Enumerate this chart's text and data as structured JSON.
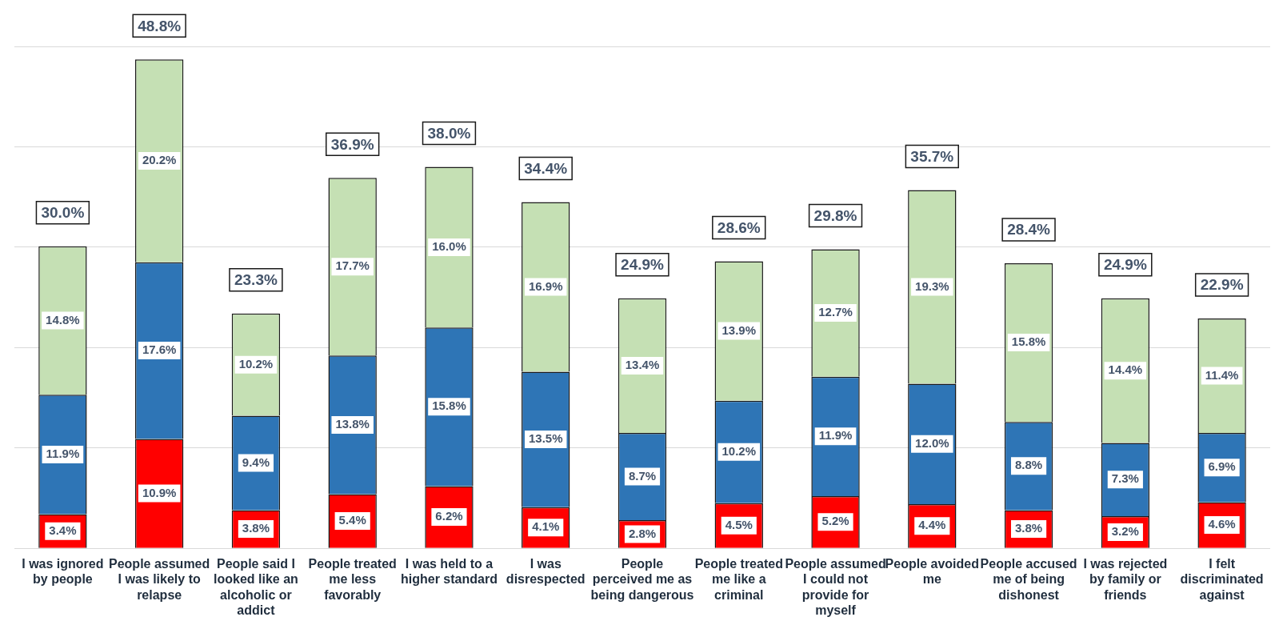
{
  "chart_data": {
    "type": "bar",
    "stacked": true,
    "categories": [
      "I was ignored by people",
      "People assumed I was likely to relapse",
      "People said I looked like an alcoholic or addict",
      "People treated me less favorably",
      "I was held to a higher standard",
      "I was disrespected",
      "People perceived me as being dangerous",
      "People treated me like a criminal",
      "People assumed I could not provide for myself",
      "People avoided me",
      "People accused me of being dishonest",
      "I was rejected by family or friends",
      "I felt discriminated against"
    ],
    "series": [
      {
        "color": "#ff0000",
        "values": [
          3.4,
          10.9,
          3.8,
          5.4,
          6.2,
          4.1,
          2.8,
          4.5,
          5.2,
          4.4,
          3.8,
          3.2,
          4.6
        ],
        "value_labels": [
          "3.4%",
          "10.9%",
          "3.8%",
          "5.4%",
          "6.2%",
          "4.1%",
          "2.8%",
          "4.5%",
          "5.2%",
          "4.4%",
          "3.8%",
          "3.2%",
          "4.6%"
        ]
      },
      {
        "color": "#2e75b6",
        "values": [
          11.9,
          17.6,
          9.4,
          13.8,
          15.8,
          13.5,
          8.7,
          10.2,
          11.9,
          12.0,
          8.8,
          7.3,
          6.9
        ],
        "value_labels": [
          "11.9%",
          "17.6%",
          "9.4%",
          "13.8%",
          "15.8%",
          "13.5%",
          "8.7%",
          "10.2%",
          "11.9%",
          "12.0%",
          "8.8%",
          "7.3%",
          "6.9%"
        ]
      },
      {
        "color": "#c5e0b4",
        "values": [
          14.8,
          20.2,
          10.2,
          17.7,
          16.0,
          16.9,
          13.4,
          13.9,
          12.7,
          19.3,
          15.8,
          14.4,
          11.4
        ],
        "value_labels": [
          "14.8%",
          "20.2%",
          "10.2%",
          "17.7%",
          "16.0%",
          "16.9%",
          "13.4%",
          "13.9%",
          "12.7%",
          "19.3%",
          "15.8%",
          "14.4%",
          "11.4%"
        ]
      }
    ],
    "totals": [
      "30.0%",
      "48.8%",
      "23.3%",
      "36.9%",
      "38.0%",
      "34.4%",
      "24.9%",
      "28.6%",
      "29.8%",
      "35.7%",
      "28.4%",
      "24.9%",
      "22.9%"
    ],
    "ylim": [
      0,
      50
    ],
    "yticks": [
      {
        "value": 0,
        "label": null
      },
      {
        "value": 10,
        "label": null
      },
      {
        "value": 20,
        "label": null
      },
      {
        "value": 30,
        "label": null
      },
      {
        "value": 40,
        "label": null
      },
      {
        "value": 50,
        "label": null
      }
    ],
    "tick_labels": "x",
    "grid": "y",
    "legend": false
  }
}
